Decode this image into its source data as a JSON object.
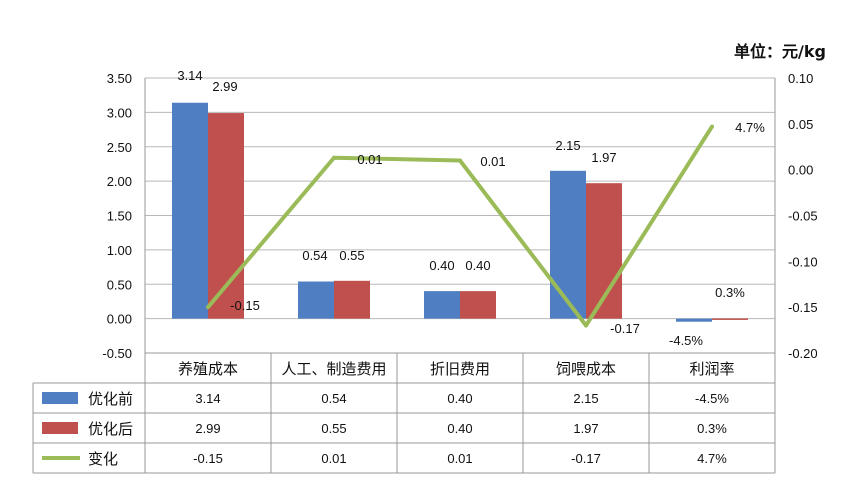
{
  "chart_data": {
    "type": "bar",
    "unit_label": "单位：元/kg",
    "categories": [
      "养殖成本",
      "人工、制造费用",
      "折旧费用",
      "饲喂成本",
      "利润率"
    ],
    "series": [
      {
        "name": "优化前",
        "type": "bar",
        "axis": "left",
        "color": "#4f7fc2",
        "values": [
          3.14,
          0.54,
          0.4,
          2.15,
          -0.045
        ],
        "labels": [
          "3.14",
          "0.54",
          "0.40",
          "2.15",
          "-4.5%"
        ]
      },
      {
        "name": "优化后",
        "type": "bar",
        "axis": "left",
        "color": "#c0504d",
        "values": [
          2.99,
          0.55,
          0.4,
          1.97,
          0.003
        ],
        "labels": [
          "2.99",
          "0.55",
          "0.40",
          "1.97",
          "0.3%"
        ]
      },
      {
        "name": "变化",
        "type": "line",
        "axis": "right",
        "color": "#9bbb59",
        "values": [
          -0.15,
          0.013,
          0.01,
          -0.17,
          0.047
        ],
        "labels": [
          "-0.15",
          "0.01",
          "0.01",
          "-0.17",
          "4.7%"
        ]
      }
    ],
    "y_left": {
      "lim": [
        -0.5,
        3.5
      ],
      "ticks": [
        "-0.50",
        "0.00",
        "0.50",
        "1.00",
        "1.50",
        "2.00",
        "2.50",
        "3.00",
        "3.50"
      ]
    },
    "y_right": {
      "lim": [
        -0.2,
        0.1
      ],
      "ticks": [
        "-0.20",
        "-0.15",
        "-0.10",
        "-0.05",
        "0.00",
        "0.05",
        "0.10"
      ]
    },
    "grid": true,
    "legend": "data-table",
    "table": {
      "rows": [
        {
          "legend": "优化前",
          "cells": [
            "3.14",
            "0.54",
            "0.40",
            "2.15",
            "-4.5%"
          ]
        },
        {
          "legend": "优化后",
          "cells": [
            "2.99",
            "0.55",
            "0.40",
            "1.97",
            "0.3%"
          ]
        },
        {
          "legend": "变化",
          "cells": [
            "-0.15",
            "0.01",
            "0.01",
            "-0.17",
            "4.7%"
          ]
        }
      ]
    }
  }
}
